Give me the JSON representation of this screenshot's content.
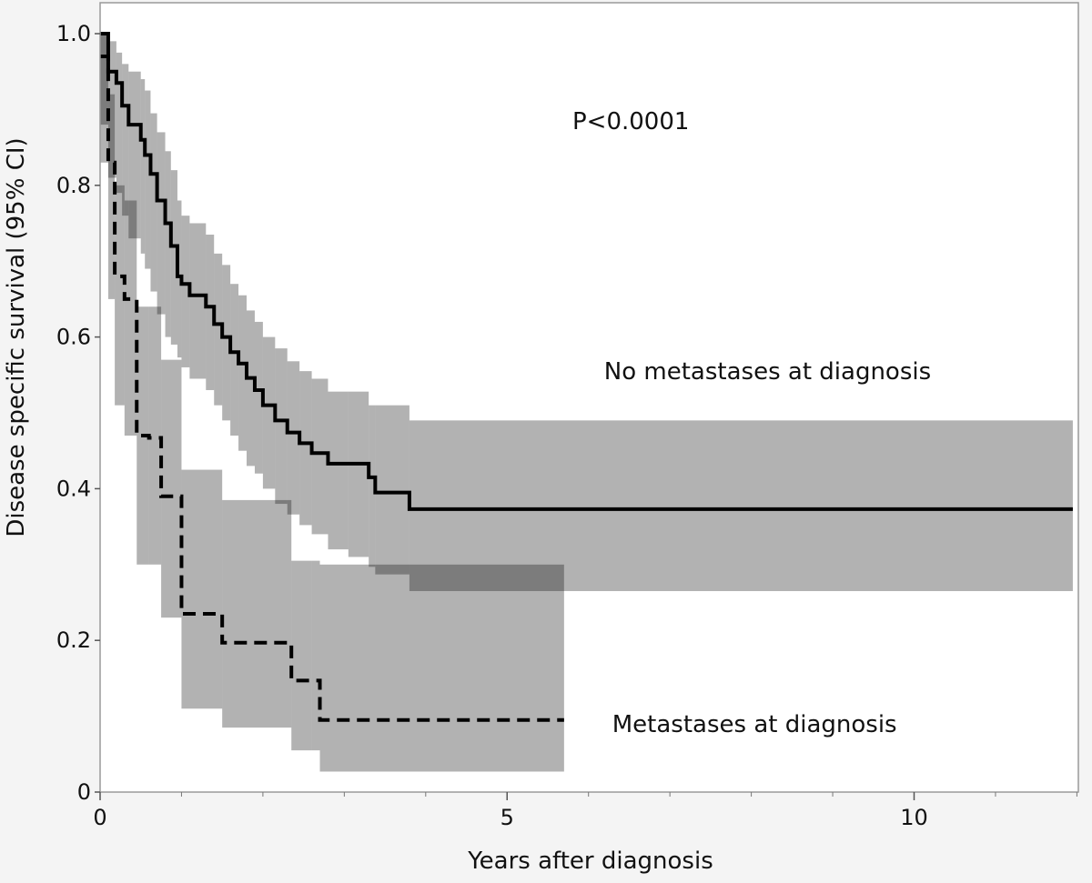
{
  "chart_data": {
    "type": "line",
    "subtype": "kaplan-meier",
    "title": "",
    "xlabel": "Years after diagnosis",
    "ylabel": "Disease specific survival (95% CI)",
    "xlim": [
      0,
      12.0
    ],
    "ylim": [
      0,
      1.0
    ],
    "x_ticks": [
      0,
      5,
      10
    ],
    "x_tick_labels": [
      "0",
      "5",
      "10"
    ],
    "y_ticks": [
      0,
      0.2,
      0.4,
      0.6,
      0.8,
      1.0
    ],
    "y_tick_labels": [
      "0",
      "0.2",
      "0.4",
      "0.6",
      "0.8",
      "1.0"
    ],
    "grid": false,
    "annotations": [
      {
        "name": "p-value",
        "text": "P<0.0001",
        "x": 6.52,
        "y": 0.885
      },
      {
        "name": "label-no-metastases",
        "text": "No metastases at diagnosis",
        "x": 8.2,
        "y": 0.555
      },
      {
        "name": "label-metastases",
        "text": "Metastases at diagnosis",
        "x": 8.04,
        "y": 0.09
      }
    ],
    "series": [
      {
        "name": "No metastases at diagnosis",
        "style": "solid",
        "color": "#000000",
        "x": [
          0,
          0.1,
          0.2,
          0.27,
          0.35,
          0.5,
          0.55,
          0.62,
          0.7,
          0.8,
          0.87,
          0.95,
          1.0,
          1.1,
          1.3,
          1.4,
          1.5,
          1.6,
          1.7,
          1.8,
          1.9,
          2.0,
          2.15,
          2.3,
          2.45,
          2.6,
          2.8,
          3.05,
          3.3,
          3.38,
          3.8,
          11.95
        ],
        "y": [
          1.0,
          0.95,
          0.935,
          0.905,
          0.88,
          0.86,
          0.84,
          0.815,
          0.78,
          0.75,
          0.72,
          0.68,
          0.67,
          0.655,
          0.64,
          0.617,
          0.6,
          0.58,
          0.565,
          0.546,
          0.53,
          0.51,
          0.49,
          0.474,
          0.46,
          0.447,
          0.433,
          0.433,
          0.415,
          0.395,
          0.373,
          0.373
        ]
      },
      {
        "name": "Metastases at diagnosis",
        "style": "dashed",
        "color": "#000000",
        "x": [
          0,
          0.1,
          0.18,
          0.3,
          0.45,
          0.6,
          0.75,
          1.0,
          1.5,
          2.35,
          2.6,
          2.7,
          5.7
        ],
        "y": [
          0.97,
          0.83,
          0.68,
          0.65,
          0.47,
          0.467,
          0.39,
          0.235,
          0.197,
          0.147,
          0.147,
          0.095,
          0.095
        ]
      }
    ],
    "confidence_bands": [
      {
        "name": "No metastases 95% CI",
        "color": "#aaaaaa",
        "x": [
          0,
          0.1,
          0.2,
          0.27,
          0.35,
          0.5,
          0.55,
          0.62,
          0.7,
          0.8,
          0.87,
          0.95,
          1.0,
          1.1,
          1.3,
          1.4,
          1.5,
          1.6,
          1.7,
          1.8,
          1.9,
          2.0,
          2.15,
          2.3,
          2.45,
          2.6,
          2.8,
          3.05,
          3.3,
          3.38,
          3.8,
          11.95
        ],
        "lower": [
          0.83,
          0.81,
          0.79,
          0.76,
          0.73,
          0.71,
          0.69,
          0.66,
          0.63,
          0.6,
          0.59,
          0.573,
          0.56,
          0.545,
          0.53,
          0.51,
          0.49,
          0.47,
          0.45,
          0.43,
          0.42,
          0.4,
          0.38,
          0.366,
          0.352,
          0.34,
          0.32,
          0.31,
          0.297,
          0.287,
          0.265,
          0.265
        ],
        "upper": [
          1.0,
          0.99,
          0.975,
          0.96,
          0.95,
          0.94,
          0.925,
          0.895,
          0.87,
          0.845,
          0.82,
          0.78,
          0.76,
          0.75,
          0.735,
          0.71,
          0.695,
          0.67,
          0.655,
          0.635,
          0.62,
          0.6,
          0.585,
          0.568,
          0.555,
          0.545,
          0.528,
          0.528,
          0.51,
          0.51,
          0.49,
          0.49
        ]
      },
      {
        "name": "Metastases 95% CI",
        "color": "#aaaaaa",
        "x": [
          0,
          0.1,
          0.18,
          0.3,
          0.45,
          0.6,
          0.75,
          1.0,
          1.5,
          2.35,
          2.6,
          2.7,
          5.7
        ],
        "lower": [
          0.88,
          0.65,
          0.51,
          0.47,
          0.3,
          0.3,
          0.23,
          0.11,
          0.085,
          0.055,
          0.055,
          0.027,
          0.027
        ],
        "upper": [
          1.0,
          0.92,
          0.8,
          0.78,
          0.64,
          0.64,
          0.57,
          0.425,
          0.385,
          0.305,
          0.305,
          0.3,
          0.3
        ]
      }
    ]
  }
}
